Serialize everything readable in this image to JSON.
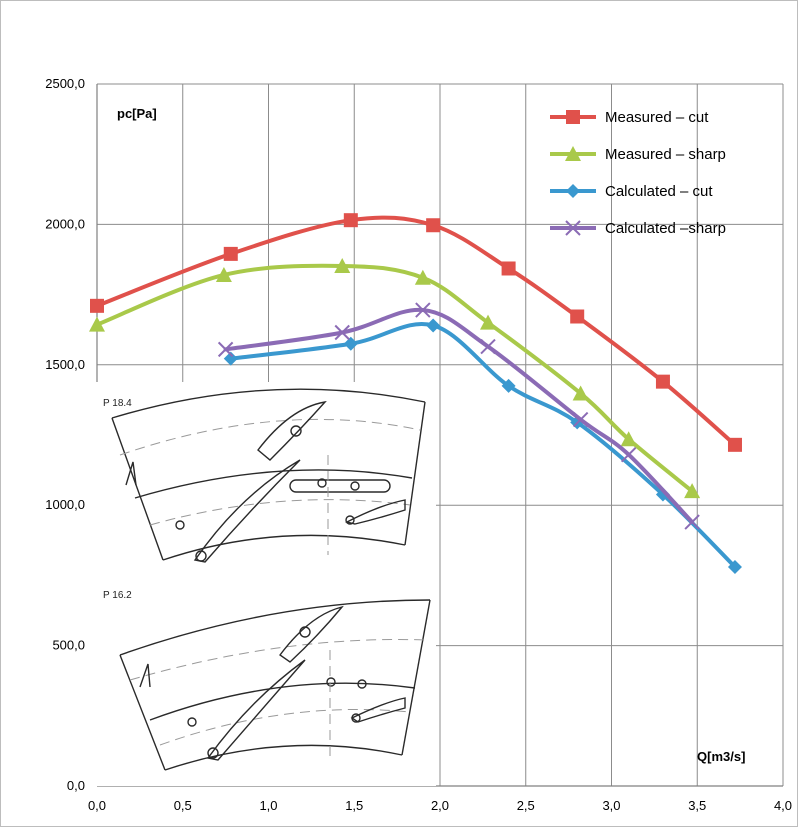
{
  "chart_data": {
    "type": "line",
    "xlabel": "Q[m3/s]",
    "ylabel": "pc[Pa]",
    "xlim": [
      0,
      4
    ],
    "ylim": [
      0,
      2500
    ],
    "x_ticks": [
      "0,0",
      "0,5",
      "1,0",
      "1,5",
      "2,0",
      "2,5",
      "3,0",
      "3,5",
      "4,0"
    ],
    "y_ticks": [
      "0,0",
      "500,0",
      "1000,0",
      "1500,0",
      "2000,0",
      "2500,0"
    ],
    "grid": true,
    "legend_position": "top-right",
    "series": [
      {
        "name": "Measured – cut",
        "color": "#e0514b",
        "marker": "square",
        "x": [
          0.0,
          0.78,
          1.48,
          1.96,
          2.4,
          2.8,
          3.3,
          3.72
        ],
        "y": [
          1710,
          1895,
          2015,
          1997,
          1843,
          1672,
          1440,
          1215
        ]
      },
      {
        "name": "Measured – sharp",
        "color": "#a9c94a",
        "marker": "triangle",
        "x": [
          0.0,
          0.74,
          1.43,
          1.9,
          2.28,
          2.82,
          3.1,
          3.47
        ],
        "y": [
          1643,
          1820,
          1852,
          1810,
          1650,
          1398,
          1235,
          1050
        ]
      },
      {
        "name": "Calculated – cut",
        "color": "#3a98cf",
        "marker": "diamond",
        "x": [
          0.78,
          1.48,
          1.96,
          2.4,
          2.8,
          3.3,
          3.72
        ],
        "y": [
          1522,
          1575,
          1640,
          1425,
          1295,
          1038,
          780
        ]
      },
      {
        "name": "Calculated –sharp",
        "color": "#8b6bb5",
        "marker": "x",
        "x": [
          0.75,
          1.43,
          1.9,
          2.28,
          2.82,
          3.1,
          3.47
        ],
        "y": [
          1555,
          1615,
          1695,
          1565,
          1305,
          1180,
          940
        ]
      }
    ]
  },
  "inset": {
    "label_top": "P 18.4",
    "label_bottom": "P 16.2"
  }
}
